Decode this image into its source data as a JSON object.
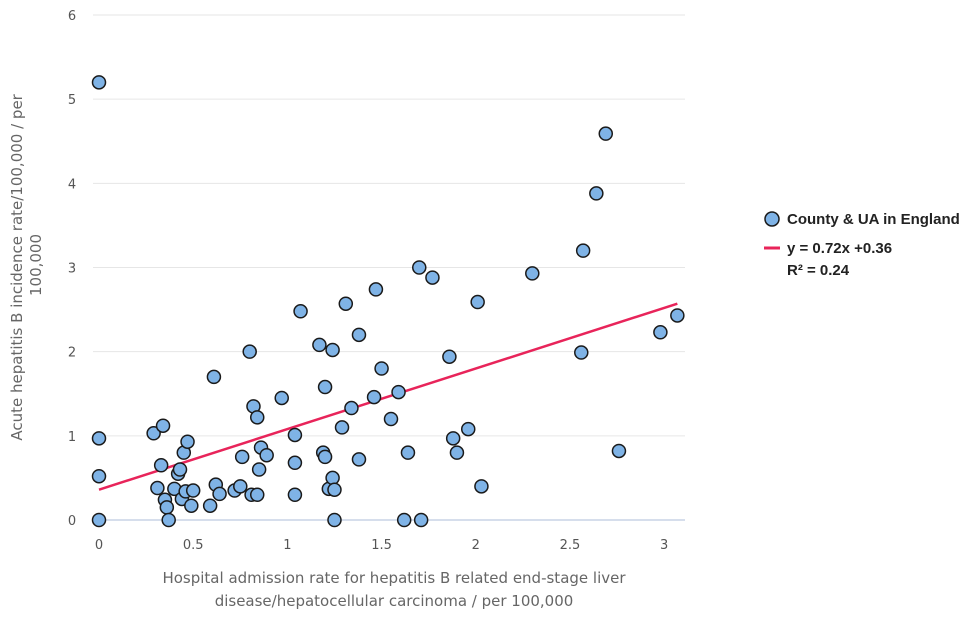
{
  "chart_data": {
    "type": "scatter",
    "title": "",
    "xlabel_lines": [
      "Hospital admission rate for hepatitis B related end-stage liver",
      "disease/hepatocellular carcinoma / per 100,000"
    ],
    "ylabel_lines": [
      "Acute hepatitis B incidence rate/100,000 / per",
      "100,000"
    ],
    "xlim": [
      0,
      3.1
    ],
    "ylim": [
      0,
      6
    ],
    "x_ticks": [
      0,
      0.5,
      1,
      1.5,
      2,
      2.5,
      3
    ],
    "x_tick_labels": [
      "0",
      "0.5",
      "1",
      "1.5",
      "2",
      "2.5",
      "3"
    ],
    "y_ticks": [
      0,
      1,
      2,
      3,
      4,
      5,
      6
    ],
    "y_tick_labels": [
      "0",
      "1",
      "2",
      "3",
      "4",
      "5",
      "6"
    ],
    "grid": true,
    "legend_position": "right",
    "series": [
      {
        "name": "County & UA in England",
        "marker_color": "#7fb3e6",
        "points": [
          [
            0.0,
            5.2
          ],
          [
            0.0,
            0.97
          ],
          [
            0.0,
            0.52
          ],
          [
            0.0,
            0.0
          ],
          [
            0.29,
            1.03
          ],
          [
            0.31,
            0.38
          ],
          [
            0.33,
            0.65
          ],
          [
            0.34,
            1.12
          ],
          [
            0.35,
            0.24
          ],
          [
            0.36,
            0.15
          ],
          [
            0.37,
            0.0
          ],
          [
            0.4,
            0.37
          ],
          [
            0.42,
            0.55
          ],
          [
            0.43,
            0.6
          ],
          [
            0.44,
            0.25
          ],
          [
            0.45,
            0.8
          ],
          [
            0.46,
            0.34
          ],
          [
            0.47,
            0.93
          ],
          [
            0.49,
            0.17
          ],
          [
            0.5,
            0.35
          ],
          [
            0.59,
            0.17
          ],
          [
            0.61,
            1.7
          ],
          [
            0.62,
            0.42
          ],
          [
            0.64,
            0.31
          ],
          [
            0.72,
            0.35
          ],
          [
            0.75,
            0.4
          ],
          [
            0.76,
            0.75
          ],
          [
            0.8,
            2.0
          ],
          [
            0.81,
            0.3
          ],
          [
            0.82,
            1.35
          ],
          [
            0.84,
            0.3
          ],
          [
            0.84,
            1.22
          ],
          [
            0.85,
            0.6
          ],
          [
            0.86,
            0.86
          ],
          [
            0.89,
            0.77
          ],
          [
            0.97,
            1.45
          ],
          [
            1.04,
            1.01
          ],
          [
            1.04,
            0.68
          ],
          [
            1.04,
            0.3
          ],
          [
            1.07,
            2.48
          ],
          [
            1.17,
            2.08
          ],
          [
            1.19,
            0.8
          ],
          [
            1.2,
            1.58
          ],
          [
            1.2,
            0.75
          ],
          [
            1.22,
            0.37
          ],
          [
            1.24,
            2.02
          ],
          [
            1.24,
            0.5
          ],
          [
            1.25,
            0.36
          ],
          [
            1.25,
            0.0
          ],
          [
            1.29,
            1.1
          ],
          [
            1.31,
            2.57
          ],
          [
            1.34,
            1.33
          ],
          [
            1.38,
            2.2
          ],
          [
            1.38,
            0.72
          ],
          [
            1.46,
            1.46
          ],
          [
            1.47,
            2.74
          ],
          [
            1.5,
            1.8
          ],
          [
            1.55,
            1.2
          ],
          [
            1.59,
            1.52
          ],
          [
            1.62,
            0.0
          ],
          [
            1.64,
            0.8
          ],
          [
            1.7,
            3.0
          ],
          [
            1.71,
            0.0
          ],
          [
            1.77,
            2.88
          ],
          [
            1.86,
            1.94
          ],
          [
            1.88,
            0.97
          ],
          [
            1.9,
            0.8
          ],
          [
            1.96,
            1.08
          ],
          [
            2.01,
            2.59
          ],
          [
            2.03,
            0.4
          ],
          [
            2.3,
            2.93
          ],
          [
            2.56,
            1.99
          ],
          [
            2.57,
            3.2
          ],
          [
            2.64,
            3.88
          ],
          [
            2.69,
            4.59
          ],
          [
            2.76,
            0.82
          ],
          [
            2.98,
            2.23
          ],
          [
            3.07,
            2.43
          ]
        ]
      }
    ],
    "trendline": {
      "label": "y = 0.72x +0.36",
      "r2_label": "R² = 0.24",
      "slope": 0.72,
      "intercept": 0.36,
      "x_range": [
        0,
        3.07
      ],
      "color": "#e8245a"
    }
  }
}
